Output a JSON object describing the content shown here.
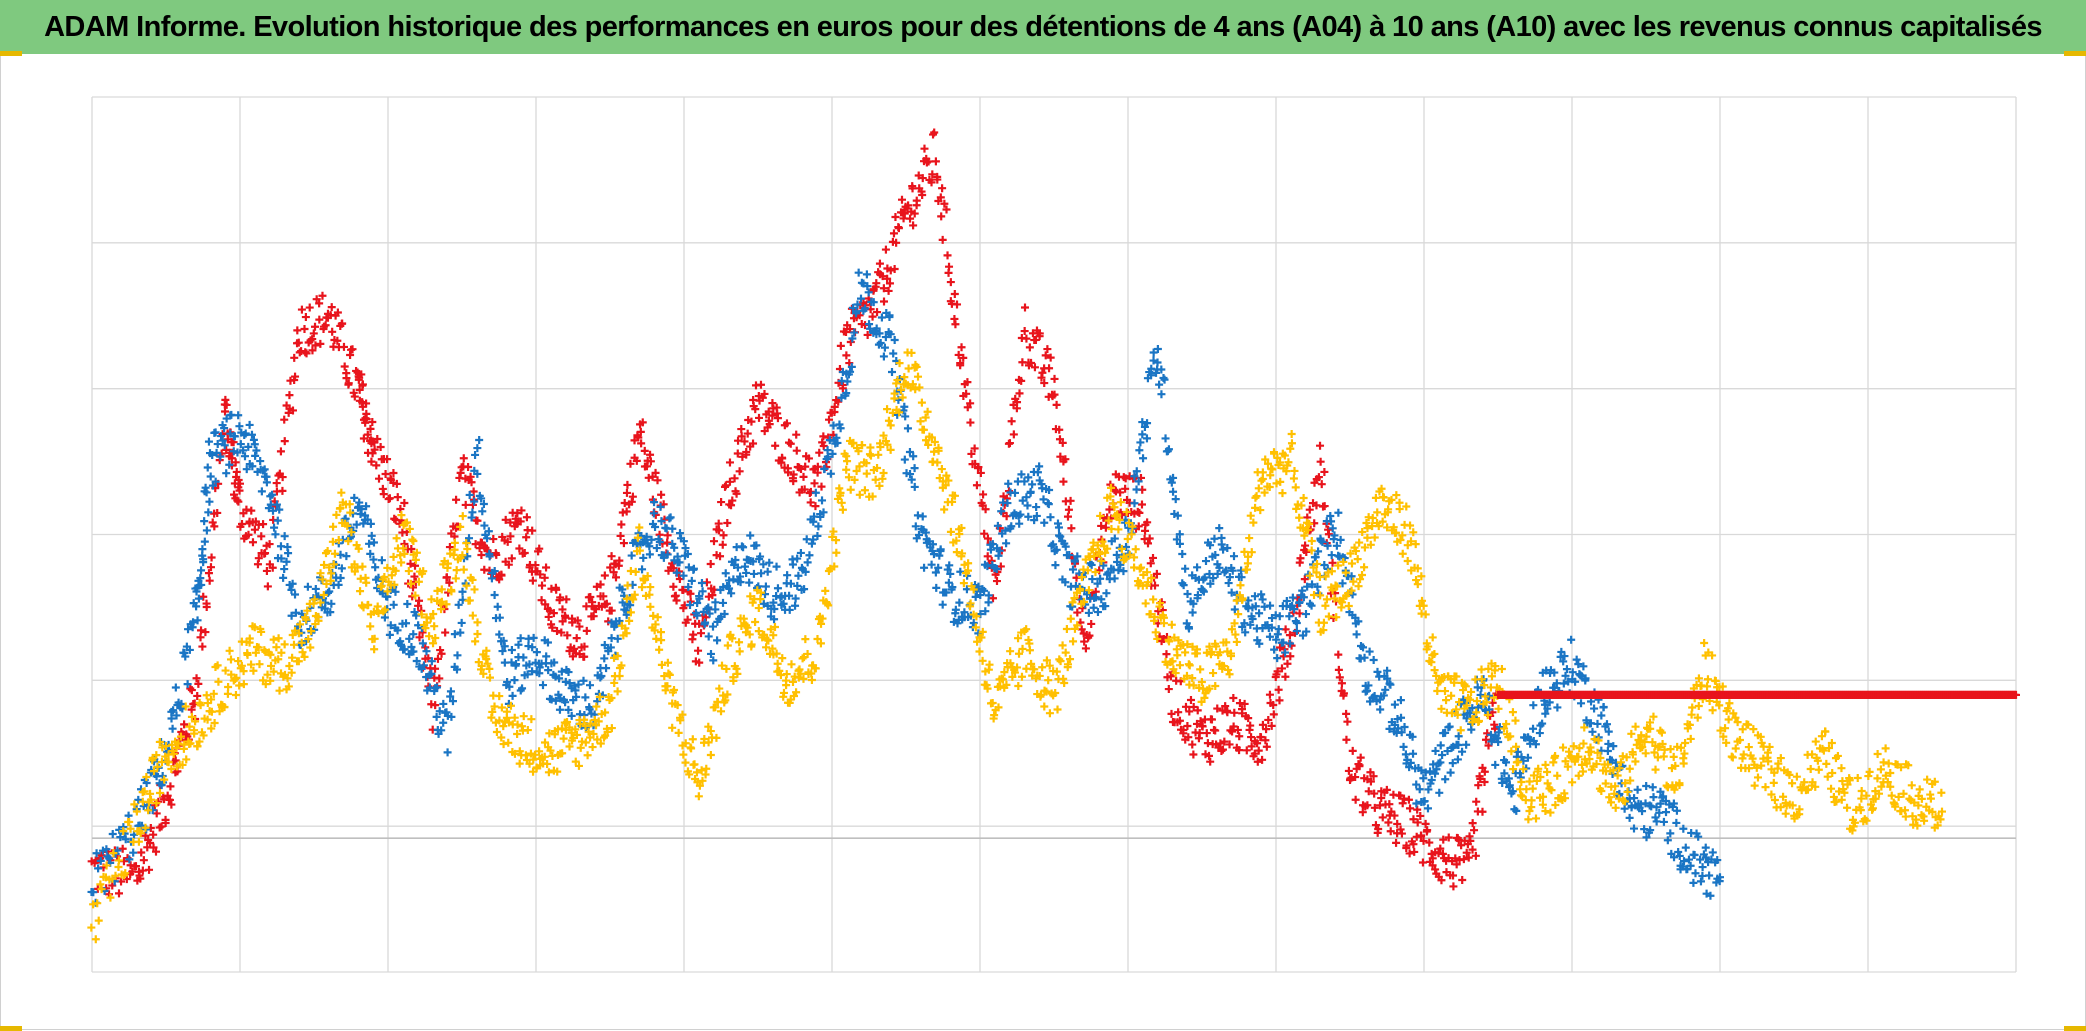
{
  "title": "ADAM Informe. Evolution historique des performances en euros pour des détentions de 4 ans (A04) à 10 ans (A10) avec les revenus connus capitalisés",
  "colors": {
    "title_background": "#7fc97f",
    "grid": "#d9d9d9",
    "baseline": "#bfbfbf",
    "red": "#e8141c",
    "blue": "#1a75c4",
    "yellow": "#ffc000",
    "corner_marks": "#e6b800"
  },
  "chart_data": {
    "type": "scatter",
    "marker": "plus",
    "grid": true,
    "legend": "none",
    "xlim": [
      0,
      13
    ],
    "ylim": [
      -1,
      5
    ],
    "reference_line_y": 0,
    "series": [
      {
        "color": "red",
        "x": [
          0,
          0.3,
          0.5,
          0.7,
          0.9,
          1.0,
          1.2,
          1.4,
          1.6,
          1.8,
          1.9,
          2.1,
          2.3,
          2.5,
          2.7,
          2.9,
          3.1,
          3.3,
          3.5,
          3.7,
          3.9,
          4.1,
          4.3,
          4.5,
          4.7,
          4.9,
          5.1,
          5.3,
          5.5,
          5.7,
          5.9,
          6.1,
          6.3,
          6.5,
          6.7,
          6.9,
          7.1,
          7.3,
          7.5,
          7.7,
          7.9,
          8.1,
          8.3,
          8.5,
          8.7,
          8.9,
          9.1,
          9.3,
          9.5
        ],
        "y": [
          -0.3,
          -0.35,
          0.2,
          0.9,
          2.8,
          2.2,
          1.8,
          3.4,
          3.5,
          3.0,
          2.6,
          2.1,
          0.8,
          2.4,
          1.8,
          2.1,
          1.5,
          1.3,
          1.6,
          2.7,
          1.9,
          1.2,
          2.3,
          2.9,
          2.6,
          2.3,
          3.3,
          3.6,
          4.2,
          4.6,
          3.0,
          1.6,
          3.4,
          3.0,
          1.3,
          2.3,
          2.2,
          0.9,
          0.6,
          0.7,
          0.6,
          1.3,
          2.5,
          0.4,
          0.1,
          0.0,
          -0.2,
          -0.3,
          0.9
        ]
      },
      {
        "color": "blue",
        "x": [
          0,
          0.3,
          0.5,
          0.7,
          0.8,
          1.0,
          1.2,
          1.4,
          1.6,
          1.8,
          2.0,
          2.2,
          2.4,
          2.6,
          2.8,
          3.0,
          3.2,
          3.4,
          3.6,
          3.8,
          4.0,
          4.2,
          4.4,
          4.6,
          4.8,
          5.0,
          5.2,
          5.4,
          5.6,
          5.8,
          6.0,
          6.2,
          6.4,
          6.6,
          6.8,
          7.0,
          7.2,
          7.4,
          7.6,
          7.8,
          8.0,
          8.2,
          8.4,
          8.6,
          8.8,
          9.0,
          9.2,
          9.4,
          9.6,
          9.8,
          10.0,
          10.2,
          10.4,
          10.6,
          10.8,
          11.0
        ],
        "y": [
          -0.4,
          0.0,
          0.5,
          1.4,
          2.5,
          2.7,
          2.3,
          1.4,
          1.6,
          2.2,
          1.5,
          1.3,
          0.6,
          2.6,
          1.0,
          1.2,
          0.9,
          0.8,
          1.6,
          2.1,
          1.8,
          1.3,
          1.9,
          1.6,
          1.7,
          2.6,
          3.7,
          3.3,
          2.0,
          1.6,
          1.5,
          2.2,
          2.3,
          1.7,
          1.6,
          2.0,
          3.3,
          1.5,
          1.9,
          1.5,
          1.3,
          1.5,
          2.1,
          1.1,
          0.8,
          0.2,
          0.6,
          0.9,
          0.2,
          0.9,
          1.1,
          0.7,
          0.1,
          0.1,
          -0.2,
          -0.35
        ]
      },
      {
        "color": "yellow",
        "x": [
          0,
          0.3,
          0.5,
          0.7,
          0.9,
          1.1,
          1.3,
          1.5,
          1.7,
          1.9,
          2.1,
          2.3,
          2.5,
          2.7,
          2.9,
          3.1,
          3.3,
          3.5,
          3.7,
          3.9,
          4.1,
          4.3,
          4.5,
          4.7,
          4.9,
          5.1,
          5.3,
          5.5,
          5.7,
          5.9,
          6.1,
          6.3,
          6.5,
          6.7,
          6.9,
          7.1,
          7.3,
          7.5,
          7.7,
          7.9,
          8.1,
          8.3,
          8.5,
          8.7,
          8.9,
          9.1,
          9.3,
          9.5,
          9.7,
          9.9,
          10.1,
          10.3,
          10.5,
          10.7,
          10.9,
          11.1,
          11.3,
          11.5,
          11.7,
          11.9,
          12.1,
          12.3,
          12.5
        ],
        "y": [
          -0.7,
          0.0,
          0.5,
          0.7,
          1.0,
          1.2,
          1.1,
          1.4,
          2.2,
          1.3,
          2.0,
          1.4,
          2.0,
          0.8,
          0.6,
          0.5,
          0.6,
          0.8,
          1.9,
          0.9,
          0.3,
          1.1,
          1.5,
          1.0,
          1.2,
          2.5,
          2.4,
          3.2,
          2.6,
          1.8,
          0.8,
          1.2,
          0.9,
          1.6,
          2.2,
          1.7,
          1.2,
          1.0,
          1.2,
          2.4,
          2.5,
          1.5,
          1.7,
          2.2,
          2.0,
          0.9,
          0.8,
          1.0,
          0.2,
          0.3,
          0.6,
          0.2,
          0.7,
          0.3,
          1.1,
          0.6,
          0.4,
          0.2,
          0.5,
          0.1,
          0.4,
          0.2,
          0.1
        ]
      },
      {
        "color": "red",
        "x": [
          9.5,
          9.75,
          10.0,
          10.25,
          10.5,
          10.75,
          11.0,
          11.25,
          11.5,
          11.75,
          12.0,
          12.25,
          12.5,
          12.75,
          13.0
        ],
        "y": [
          0.9,
          0.9,
          0.9,
          0.9,
          0.9,
          0.9,
          0.9,
          0.9,
          0.9,
          0.9,
          0.9,
          0.9,
          0.9,
          0.9,
          0.9
        ]
      }
    ]
  }
}
